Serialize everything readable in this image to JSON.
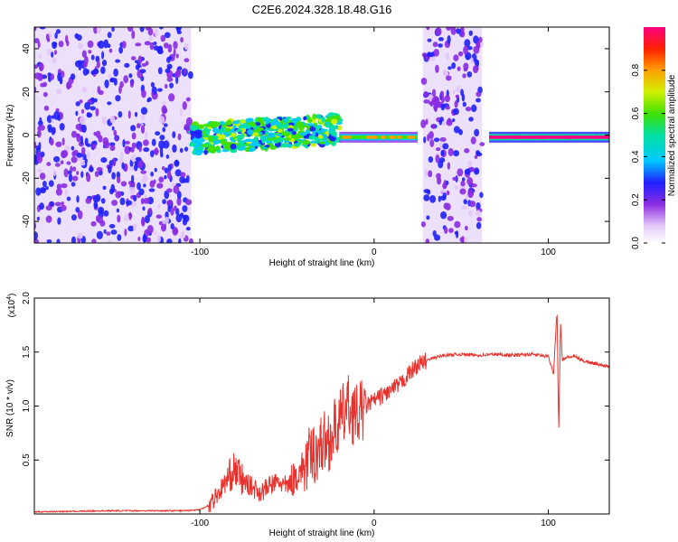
{
  "figure": {
    "title": "C2E6.2024.328.18.48.G16"
  },
  "chart_data": [
    {
      "type": "heatmap",
      "xlabel": "Height of straight line (km)",
      "ylabel": "Frequency (Hz)",
      "xlim": [
        -195,
        135
      ],
      "ylim": [
        -50,
        50
      ],
      "xticks": [
        -100,
        0,
        100
      ],
      "xtick_labels": [
        "-100",
        "0",
        "100"
      ],
      "yticks": [
        -40,
        -20,
        0,
        20,
        40
      ],
      "ytick_labels": [
        "-40",
        "-20",
        "0",
        "20",
        "40"
      ],
      "grid": false,
      "colorbar": {
        "label": "Normalized spectral amplitude",
        "range": [
          0.0,
          1.0
        ],
        "ticks": [
          0.0,
          0.2,
          0.4,
          0.6,
          0.8
        ],
        "tick_labels": [
          "0.0",
          "0.2",
          "0.4",
          "0.6",
          "0.8"
        ]
      },
      "regions": [
        {
          "x": [
            -195,
            -105
          ],
          "kind": "broadband-noise",
          "amplitude": 0.15
        },
        {
          "x": [
            -105,
            -20
          ],
          "kind": "signal-with-scatter",
          "freq_center": 0,
          "freq_spread": 7,
          "amplitude": 0.45
        },
        {
          "x": [
            -20,
            25
          ],
          "kind": "narrow-line",
          "freq_center": -1,
          "amplitude": 0.6
        },
        {
          "x": [
            28,
            62
          ],
          "kind": "broadband-noise",
          "amplitude": 0.15
        },
        {
          "x": [
            66,
            135
          ],
          "kind": "narrow-line",
          "freq_center": -1,
          "amplitude": 0.95
        }
      ]
    },
    {
      "type": "line",
      "xlabel": "Height of straight line (km)",
      "ylabel": "SNR (10 * v/v)",
      "y_multiplier": "(x10",
      "y_multiplier_exp": "4",
      "y_multiplier_close": ")",
      "xlim": [
        -195,
        135
      ],
      "ylim": [
        0,
        2.0
      ],
      "xticks": [
        -100,
        0,
        100
      ],
      "xtick_labels": [
        "-100",
        "0",
        "100"
      ],
      "yticks": [
        0.5,
        1.0,
        1.5,
        2.0
      ],
      "ytick_labels": [
        "0.5",
        "1.0",
        "1.5",
        "2.0"
      ],
      "grid": false,
      "line_color": "#e8322d",
      "series": [
        {
          "x": [
            -195,
            -150,
            -110,
            -100,
            -95,
            -90,
            -85,
            -80,
            -75,
            -70,
            -65,
            -60,
            -55,
            -50,
            -45,
            -40,
            -35,
            -30,
            -25,
            -20,
            -15,
            -10,
            -5,
            0,
            5,
            10,
            15,
            20,
            25,
            30,
            35,
            40,
            50,
            60,
            70,
            80,
            90,
            100,
            103,
            105,
            106,
            107,
            108,
            110,
            115,
            120,
            125,
            130,
            135
          ],
          "y": [
            0.02,
            0.03,
            0.03,
            0.04,
            0.08,
            0.18,
            0.3,
            0.42,
            0.3,
            0.25,
            0.2,
            0.26,
            0.3,
            0.25,
            0.35,
            0.45,
            0.55,
            0.65,
            0.7,
            0.85,
            1.0,
            0.9,
            1.0,
            1.05,
            1.1,
            1.15,
            1.2,
            1.3,
            1.38,
            1.42,
            1.45,
            1.47,
            1.48,
            1.47,
            1.48,
            1.47,
            1.48,
            1.46,
            1.3,
            1.9,
            0.75,
            1.8,
            1.42,
            1.45,
            1.46,
            1.42,
            1.4,
            1.38,
            1.37
          ]
        }
      ]
    }
  ]
}
